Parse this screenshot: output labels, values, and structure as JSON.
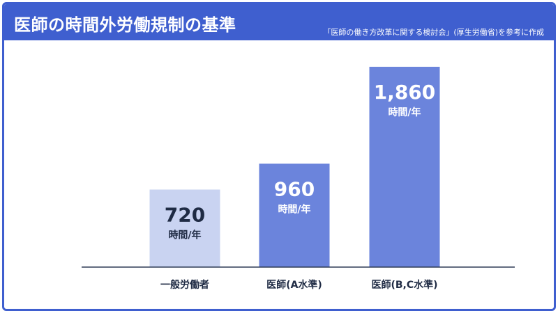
{
  "header": {
    "title": "医師の時間外労働規制の基準",
    "source": "「医師の働き方改革に関する検討会」(厚生労働省)を参考に作成"
  },
  "colors": {
    "header_bg": "#3f5fcf",
    "bar_light": "#c9d3f1",
    "bar_mid": "#6b84dc",
    "value_dark": "#1f2b44",
    "value_light": "#ffffff",
    "axis": "#2e3a55"
  },
  "chart_data": {
    "type": "bar",
    "categories": [
      "一般労働者",
      "医師(A水準)",
      "医師(B,C水準)"
    ],
    "values": [
      720,
      960,
      1860
    ],
    "value_labels": [
      "720",
      "960",
      "1,860"
    ],
    "unit": "時間/年",
    "ylim": [
      0,
      2000
    ],
    "grid": false,
    "bar_colors": [
      "#c9d3f1",
      "#6b84dc",
      "#6b84dc"
    ],
    "label_colors": [
      "#1f2b44",
      "#ffffff",
      "#ffffff"
    ]
  }
}
